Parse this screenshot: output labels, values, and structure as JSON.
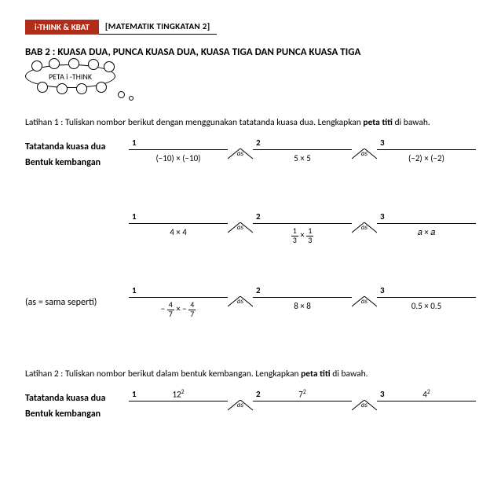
{
  "header": {
    "badge": "i-THINK & KBAT",
    "subject": "MATEMATIK TINGKATAN 2"
  },
  "title": "BAB 2 : KUASA DUA, PUNCA KUASA DUA, KUASA TIGA DAN PUNCA KUASA TIGA",
  "bubble": "PETA i -THINK",
  "ex1_instr_a": "Latihan 1 : Tuliskan nombor berikut dengan menggunakan tatatanda kuasa dua. Lengkapkan ",
  "ex1_instr_b": "peta titi",
  "ex1_instr_c": " di bawah.",
  "row_labels": {
    "tatatanda": "Tatatanda kuasa dua",
    "bentuk": "Bentuk kembangan"
  },
  "as_label": "as",
  "note": "(as = sama seperti)",
  "bridge1": {
    "nums": [
      "1",
      "2",
      "3"
    ],
    "vals": [
      "(−10) × (−10)",
      "5 × 5",
      "(−2) × (−2)"
    ]
  },
  "bridge2": {
    "nums": [
      "1",
      "2",
      "3"
    ],
    "vals_html": [
      "4 × 4",
      "<span class='frac'><span class='n'>1</span><span class='d'>3</span></span> × <span class='frac'><span class='n'>1</span><span class='d'>3</span></span>",
      "𝑎 × 𝑎"
    ]
  },
  "bridge3": {
    "nums": [
      "1",
      "2",
      "3"
    ],
    "vals_html": [
      "− <span class='frac'><span class='n'>4</span><span class='d'>7</span></span> × − <span class='frac'><span class='n'>4</span><span class='d'>7</span></span>",
      "8 × 8",
      "0.5 × 0.5"
    ]
  },
  "ex2_instr_a": "Latihan 2 : Tuliskan nombor berikut dalam bentuk kembangan. Lengkapkan ",
  "ex2_instr_b": "peta titi",
  "ex2_instr_c": " di bawah.",
  "bridge4": {
    "nums": [
      "1",
      "2",
      "3"
    ],
    "tops_html": [
      "12<sup>2</sup>",
      "7<sup>2</sup>",
      "4<sup>2</sup>"
    ]
  },
  "colors": {
    "badge_bg": "#b12d1a",
    "text": "#000000"
  }
}
